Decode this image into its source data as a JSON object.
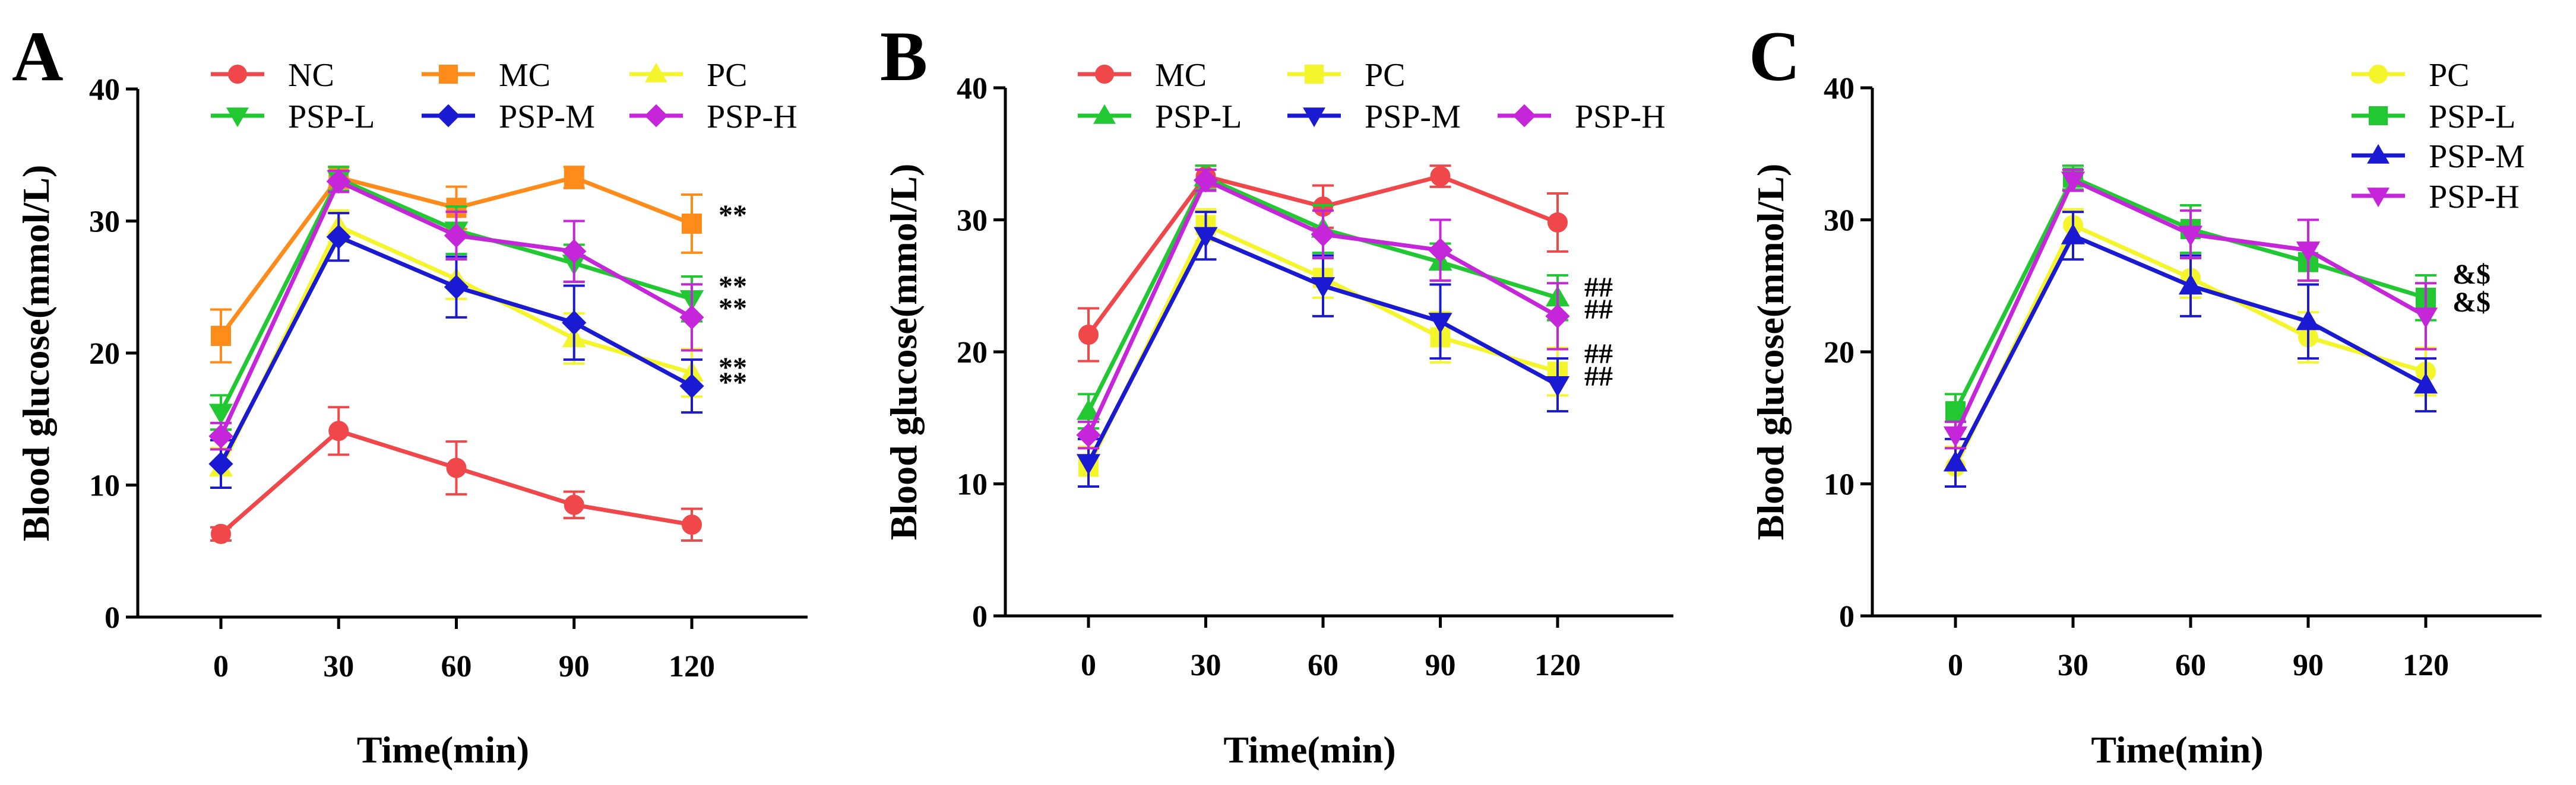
{
  "figure": {
    "panels": [
      "A",
      "B",
      "C"
    ],
    "xlabel": "Time(min)",
    "ylabel": "Blood glucose(mmol/L)"
  },
  "chart_data": [
    {
      "panel": "A",
      "type": "line",
      "title": "",
      "xlabel": "Time(min)",
      "ylabel": "Blood glucose(mmol/L)",
      "x": [
        0,
        30,
        60,
        90,
        120
      ],
      "xticks": [
        "0",
        "30",
        "60",
        "90",
        "120"
      ],
      "yticks": [
        "0",
        "10",
        "20",
        "30",
        "40"
      ],
      "ylim": [
        0,
        40
      ],
      "grid": false,
      "legend_position": "top",
      "series": [
        {
          "name": "NC",
          "color": "#f0484a",
          "marker": "circle",
          "values": [
            6.3,
            14.1,
            11.3,
            8.5,
            7.0
          ],
          "err": [
            0.5,
            1.8,
            2.0,
            1.0,
            1.2
          ]
        },
        {
          "name": "MC",
          "color": "#ff8c1a",
          "marker": "square",
          "values": [
            21.3,
            33.3,
            31.0,
            33.3,
            29.8
          ],
          "err": [
            2.0,
            0.8,
            1.6,
            0.8,
            2.2
          ]
        },
        {
          "name": "PC",
          "color": "#f5f52c",
          "marker": "triangle-up",
          "values": [
            11.3,
            29.6,
            25.6,
            21.1,
            18.5
          ],
          "err": [
            1.5,
            1.2,
            1.5,
            1.9,
            1.8
          ]
        },
        {
          "name": "PSP-L",
          "color": "#22c832",
          "marker": "triangle-down",
          "values": [
            15.5,
            33.2,
            29.3,
            26.8,
            24.1
          ],
          "err": [
            1.3,
            0.9,
            1.8,
            1.4,
            1.7
          ]
        },
        {
          "name": "PSP-M",
          "color": "#1a1ad2",
          "marker": "diamond",
          "values": [
            11.6,
            28.8,
            25.0,
            22.3,
            17.5
          ],
          "err": [
            1.8,
            1.8,
            2.3,
            2.8,
            2.0
          ]
        },
        {
          "name": "PSP-H",
          "color": "#c626d9",
          "marker": "diamond",
          "values": [
            13.7,
            33.0,
            28.9,
            27.7,
            22.7
          ],
          "err": [
            1.0,
            0.8,
            1.8,
            2.3,
            2.5
          ]
        }
      ],
      "significance": [
        {
          "series": "MC",
          "label": "**"
        },
        {
          "series": "PSP-L",
          "label": "**"
        },
        {
          "series": "PSP-H",
          "label": "**"
        },
        {
          "series": "PC",
          "label": "**"
        },
        {
          "series": "PSP-M",
          "label": "**"
        }
      ]
    },
    {
      "panel": "B",
      "type": "line",
      "title": "",
      "xlabel": "Time(min)",
      "ylabel": "Blood glucose(mmol/L)",
      "x": [
        0,
        30,
        60,
        90,
        120
      ],
      "xticks": [
        "0",
        "30",
        "60",
        "90",
        "120"
      ],
      "yticks": [
        "0",
        "10",
        "20",
        "30",
        "40"
      ],
      "ylim": [
        0,
        40
      ],
      "grid": false,
      "legend_position": "top",
      "series": [
        {
          "name": "MC",
          "color": "#f0484a",
          "marker": "circle",
          "values": [
            21.3,
            33.3,
            31.0,
            33.3,
            29.8
          ],
          "err": [
            2.0,
            0.8,
            1.6,
            0.8,
            2.2
          ]
        },
        {
          "name": "PC",
          "color": "#f5f52c",
          "marker": "square",
          "values": [
            11.3,
            29.6,
            25.6,
            21.1,
            18.5
          ],
          "err": [
            1.5,
            1.2,
            1.5,
            1.9,
            1.8
          ]
        },
        {
          "name": "PSP-L",
          "color": "#22c832",
          "marker": "triangle-up",
          "values": [
            15.5,
            33.2,
            29.3,
            26.8,
            24.1
          ],
          "err": [
            1.3,
            0.9,
            1.8,
            1.4,
            1.7
          ]
        },
        {
          "name": "PSP-M",
          "color": "#1a1ad2",
          "marker": "triangle-down",
          "values": [
            11.6,
            28.8,
            25.0,
            22.3,
            17.5
          ],
          "err": [
            1.8,
            1.8,
            2.3,
            2.8,
            2.0
          ]
        },
        {
          "name": "PSP-H",
          "color": "#c626d9",
          "marker": "diamond",
          "values": [
            13.7,
            33.0,
            28.9,
            27.7,
            22.7
          ],
          "err": [
            1.0,
            0.8,
            1.8,
            2.3,
            2.5
          ]
        }
      ],
      "significance": [
        {
          "series": "PSP-L",
          "label": "##"
        },
        {
          "series": "PSP-H",
          "label": "##"
        },
        {
          "series": "PC",
          "label": "##"
        },
        {
          "series": "PSP-M",
          "label": "##"
        }
      ]
    },
    {
      "panel": "C",
      "type": "line",
      "title": "",
      "xlabel": "Time(min)",
      "ylabel": "Blood glucose(mmol/L)",
      "x": [
        0,
        30,
        60,
        90,
        120
      ],
      "xticks": [
        "0",
        "30",
        "60",
        "90",
        "120"
      ],
      "yticks": [
        "0",
        "10",
        "20",
        "30",
        "40"
      ],
      "ylim": [
        0,
        40
      ],
      "grid": false,
      "legend_position": "top-right",
      "series": [
        {
          "name": "PC",
          "color": "#f5f52c",
          "marker": "circle",
          "values": [
            11.3,
            29.6,
            25.6,
            21.1,
            18.5
          ],
          "err": [
            1.5,
            1.2,
            1.5,
            1.9,
            1.8
          ]
        },
        {
          "name": "PSP-L",
          "color": "#22c832",
          "marker": "square",
          "values": [
            15.5,
            33.2,
            29.3,
            26.8,
            24.1
          ],
          "err": [
            1.3,
            0.9,
            1.8,
            1.4,
            1.7
          ]
        },
        {
          "name": "PSP-M",
          "color": "#1a1ad2",
          "marker": "triangle-up",
          "values": [
            11.6,
            28.8,
            25.0,
            22.3,
            17.5
          ],
          "err": [
            1.8,
            1.8,
            2.3,
            2.8,
            2.0
          ]
        },
        {
          "name": "PSP-H",
          "color": "#c626d9",
          "marker": "triangle-down",
          "values": [
            13.7,
            33.0,
            28.9,
            27.7,
            22.7
          ],
          "err": [
            1.0,
            0.8,
            1.8,
            2.3,
            2.5
          ]
        }
      ],
      "significance": [
        {
          "series": "PSP-L",
          "label": "&$"
        },
        {
          "series": "PSP-H",
          "label": "&$"
        }
      ]
    }
  ]
}
